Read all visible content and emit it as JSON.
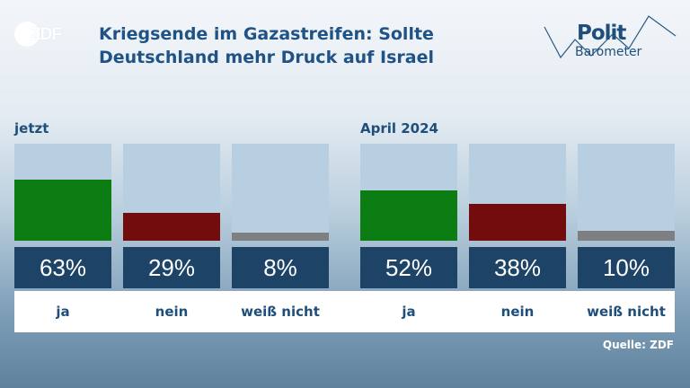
{
  "header": {
    "broadcaster": "ZDF",
    "title_line1": "Kriegsende im Gazastreifen: Sollte",
    "title_line2": "Deutschland mehr Druck auf Israel",
    "brand_line1": "Polit",
    "brand_line2": "Barometer"
  },
  "source": "Quelle: ZDF",
  "colors": {
    "ja": "#0b7d12",
    "nein": "#730c0d",
    "weiss_nicht": "#7d7f82",
    "bar_bg": "#b7cfe0"
  },
  "chart_data": [
    {
      "type": "bar",
      "title": "jetzt",
      "categories": [
        "ja",
        "nein",
        "weiß nicht"
      ],
      "values": [
        63,
        29,
        8
      ],
      "value_labels": [
        "63%",
        "29%",
        "8%"
      ],
      "ylim": [
        0,
        100
      ]
    },
    {
      "type": "bar",
      "title": "April 2024",
      "categories": [
        "ja",
        "nein",
        "weiß nicht"
      ],
      "values": [
        52,
        38,
        10
      ],
      "value_labels": [
        "52%",
        "38%",
        "10%"
      ],
      "ylim": [
        0,
        100
      ]
    }
  ]
}
